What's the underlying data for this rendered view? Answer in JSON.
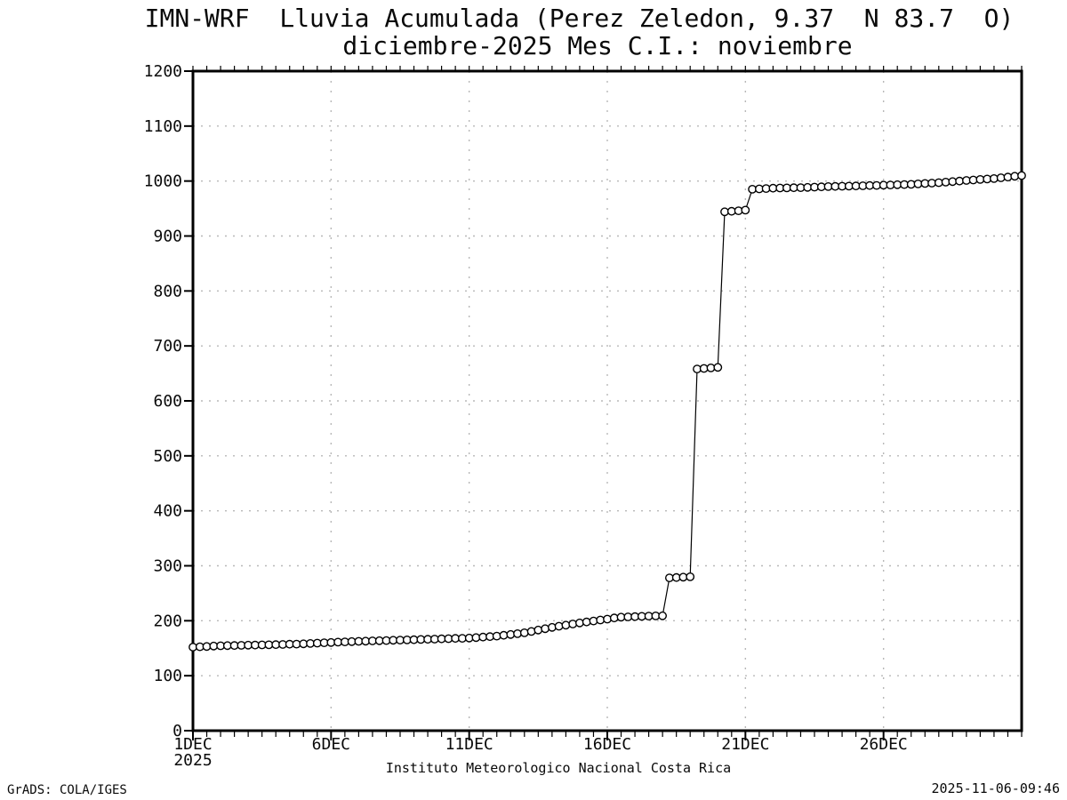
{
  "footer": {
    "left": "GrADS: COLA/IGES",
    "right": "2025-11-06-09:46"
  },
  "axes": {
    "y_ticks": [
      {
        "value": 0,
        "label": "0"
      },
      {
        "value": 100,
        "label": "100"
      },
      {
        "value": 200,
        "label": "200"
      },
      {
        "value": 300,
        "label": "300"
      },
      {
        "value": 400,
        "label": "400"
      },
      {
        "value": 500,
        "label": "500"
      },
      {
        "value": 600,
        "label": "600"
      },
      {
        "value": 700,
        "label": "700"
      },
      {
        "value": 800,
        "label": "800"
      },
      {
        "value": 900,
        "label": "900"
      },
      {
        "value": 1000,
        "label": "1000"
      },
      {
        "value": 1100,
        "label": "1100"
      },
      {
        "value": 1200,
        "label": "1200"
      }
    ],
    "x_ticks": [
      {
        "day": 0,
        "label": "1DEC",
        "sublabel": "2025"
      },
      {
        "day": 5,
        "label": "6DEC"
      },
      {
        "day": 10,
        "label": "11DEC"
      },
      {
        "day": 15,
        "label": "16DEC"
      },
      {
        "day": 20,
        "label": "21DEC"
      },
      {
        "day": 25,
        "label": "26DEC"
      }
    ]
  },
  "chart_data": {
    "type": "line",
    "title": "IMN-WRF  Lluvia Acumulada (Perez Zeledon, 9.37  N 83.7  O)",
    "subtitle": "diciembre-2025 Mes C.I.: noviembre",
    "xlabel": "Instituto Meteorologico Nacional Costa Rica",
    "ylabel": "",
    "ylim": [
      0,
      1200
    ],
    "y_tick_step": 100,
    "x_start_label": "1DEC2025",
    "x_range_days": [
      0,
      30
    ],
    "x_interval_days": 0.25,
    "x_major_tick_days": 5,
    "x_minor_tick_days": 0.5,
    "grid": true,
    "legend": false,
    "marker": "open-circle",
    "colors": {
      "line": "#000000",
      "marker_fill": "#ffffff",
      "grid": "#b8b8b8",
      "frame": "#000000",
      "background": "#ffffff",
      "text": "#0a0a0a"
    },
    "values": [
      152.0,
      152.6,
      153.2,
      153.9,
      154.5,
      154.8,
      155.0,
      155.3,
      155.5,
      155.8,
      156.0,
      156.3,
      156.5,
      156.9,
      157.3,
      157.6,
      158.0,
      158.6,
      159.3,
      159.9,
      160.5,
      161.0,
      161.5,
      162.0,
      162.5,
      162.9,
      163.3,
      163.6,
      164.0,
      164.4,
      164.8,
      165.1,
      165.5,
      165.9,
      166.3,
      166.6,
      167.0,
      167.4,
      167.8,
      168.1,
      168.5,
      169.4,
      170.3,
      171.1,
      172.0,
      173.5,
      175.0,
      176.5,
      178.0,
      180.5,
      183.0,
      185.5,
      188.0,
      190.0,
      192.0,
      194.0,
      196.0,
      197.8,
      199.5,
      201.3,
      203.0,
      205.0,
      206.5,
      207.0,
      207.5,
      208.0,
      208.5,
      208.8,
      209.0,
      278.0,
      278.7,
      279.3,
      280.0,
      658.0,
      659.0,
      660.0,
      661.0,
      944.0,
      945.0,
      946.0,
      947.0,
      985.0,
      985.7,
      986.3,
      987.0,
      987.3,
      987.5,
      987.8,
      988.0,
      988.5,
      989.0,
      989.5,
      990.0,
      990.3,
      990.5,
      990.8,
      991.0,
      991.4,
      991.8,
      992.1,
      992.5,
      992.9,
      993.3,
      993.6,
      994.0,
      994.8,
      995.5,
      996.3,
      997.0,
      998.0,
      999.0,
      1000.0,
      1001.0,
      1001.9,
      1002.8,
      1003.6,
      1004.5,
      1005.9,
      1007.3,
      1008.6,
      1010.0
    ]
  }
}
